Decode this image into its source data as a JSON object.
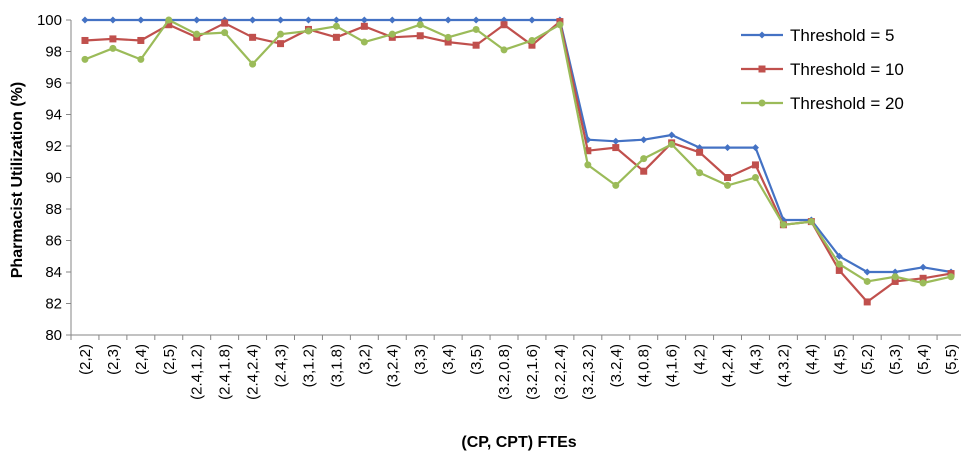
{
  "chart_data": {
    "type": "line",
    "title": "",
    "xlabel": "(CP, CPT) FTEs",
    "ylabel": "Pharmacist Utilization (%)",
    "ylim": [
      80,
      100
    ],
    "yticks": [
      80,
      82,
      84,
      86,
      88,
      90,
      92,
      94,
      96,
      98,
      100
    ],
    "grid": false,
    "legend_position": "top-right",
    "categories": [
      "(2,2)",
      "(2,3)",
      "(2,4)",
      "(2,5)",
      "(2.4,1.2)",
      "(2.4,1.8)",
      "(2.4,2.4)",
      "(2.4,3)",
      "(3,1.2)",
      "(3,1.8)",
      "(3,2)",
      "(3,2.4)",
      "(3,3)",
      "(3,4)",
      "(3,5)",
      "(3.2,0.8)",
      "(3.2,1.6)",
      "(3.2,2.4)",
      "(3.2,3.2)",
      "(3.2,4)",
      "(4,0.8)",
      "(4,1.6)",
      "(4,2)",
      "(4,2.4)",
      "(4,3)",
      "(4,3.2)",
      "(4,4)",
      "(4,5)",
      "(5,2)",
      "(5,3)",
      "(5,4)",
      "(5,5)"
    ],
    "series": [
      {
        "name": "Threshold = 5",
        "color": "#4472C4",
        "marker": "diamond",
        "values": [
          100,
          100,
          100,
          100,
          100,
          100,
          100,
          100,
          100,
          100,
          100,
          100,
          100,
          100,
          100,
          100,
          100,
          100,
          92.4,
          92.3,
          92.4,
          92.7,
          91.9,
          91.9,
          91.9,
          87.3,
          87.3,
          85.0,
          84.0,
          84.0,
          84.3,
          84.0
        ]
      },
      {
        "name": "Threshold = 10",
        "color": "#C0504D",
        "marker": "square",
        "values": [
          98.7,
          98.8,
          98.7,
          99.7,
          98.9,
          99.8,
          98.9,
          98.5,
          99.4,
          98.9,
          99.6,
          98.9,
          99.0,
          98.6,
          98.4,
          99.7,
          98.4,
          99.9,
          91.7,
          91.9,
          90.4,
          92.2,
          91.6,
          90.0,
          90.8,
          87.0,
          87.2,
          84.1,
          82.1,
          83.4,
          83.6,
          83.9
        ]
      },
      {
        "name": "Threshold = 20",
        "color": "#9BBB59",
        "marker": "circle",
        "values": [
          97.5,
          98.2,
          97.5,
          100.0,
          99.1,
          99.2,
          97.2,
          99.1,
          99.3,
          99.6,
          98.6,
          99.1,
          99.7,
          98.9,
          99.4,
          98.1,
          98.7,
          99.7,
          90.8,
          89.5,
          91.2,
          92.1,
          90.3,
          89.5,
          90.0,
          87.0,
          87.2,
          84.5,
          83.4,
          83.7,
          83.3,
          83.7
        ]
      }
    ]
  }
}
